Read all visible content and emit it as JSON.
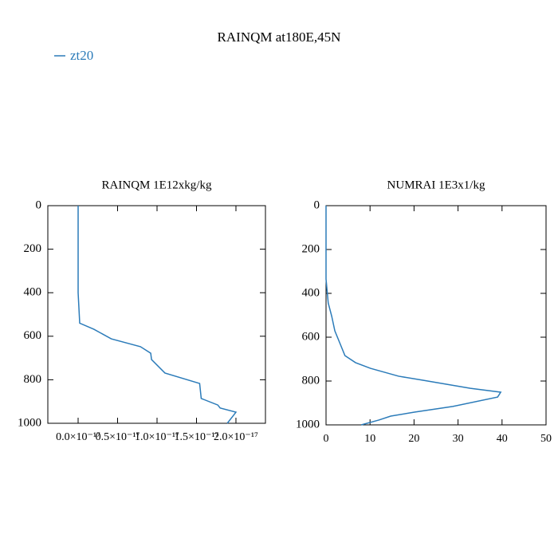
{
  "title": "RAINQM at180E,45N",
  "chart_data": [
    {
      "type": "line",
      "title": "RAINQM  1E12xkg/kg",
      "xlim": [
        -3.84e-18,
        2.374e-17
      ],
      "xticks": [
        {
          "value": 0,
          "label": "0.0×10⁻¹⁷"
        },
        {
          "value": 5e-18,
          "label": "0.5×10⁻¹⁷"
        },
        {
          "value": 1e-17,
          "label": "1.0×10⁻¹⁷"
        },
        {
          "value": 1.5e-17,
          "label": "1.5×10⁻¹⁷"
        },
        {
          "value": 2e-17,
          "label": "2.0×10⁻¹⁷"
        }
      ],
      "ylim": [
        1000,
        0
      ],
      "yticks": [
        0,
        200,
        400,
        600,
        800,
        1000
      ],
      "series": [
        {
          "name": "zt20",
          "color": "#2b7bb9",
          "values": [
            0,
            0,
            2e-19,
            2e-18,
            4.2e-18,
            7.9e-18,
            9.2e-18,
            9.3e-18,
            1.1e-17,
            1.54e-17,
            1.56e-17,
            1.77e-17,
            1.8e-17,
            2e-17,
            1.97e-17,
            1.89e-17
          ],
          "levels": [
            0,
            400,
            540,
            568,
            612,
            648,
            678,
            707,
            769,
            817,
            886,
            916,
            930,
            949,
            963,
            1000
          ]
        }
      ]
    },
    {
      "type": "line",
      "title": "NUMRAI  1E3x1/kg",
      "xlim": [
        0,
        50
      ],
      "xticks": [
        0,
        10,
        20,
        30,
        40,
        50
      ],
      "ylim": [
        1000,
        0
      ],
      "yticks": [
        0,
        200,
        400,
        600,
        800,
        1000
      ],
      "series": [
        {
          "color": "#2b7bb9",
          "values": [
            0,
            0,
            0.5,
            1.3,
            2,
            3.1,
            4.3,
            6.7,
            10.1,
            16.5,
            21.9,
            32.8,
            39.7,
            39,
            28.8,
            20.1,
            14.7,
            12,
            8
          ],
          "levels": [
            0,
            335,
            444,
            505,
            571,
            625,
            684,
            716,
            742,
            778,
            796,
            833,
            851,
            873,
            916,
            942,
            960,
            978,
            1000
          ]
        }
      ]
    }
  ]
}
